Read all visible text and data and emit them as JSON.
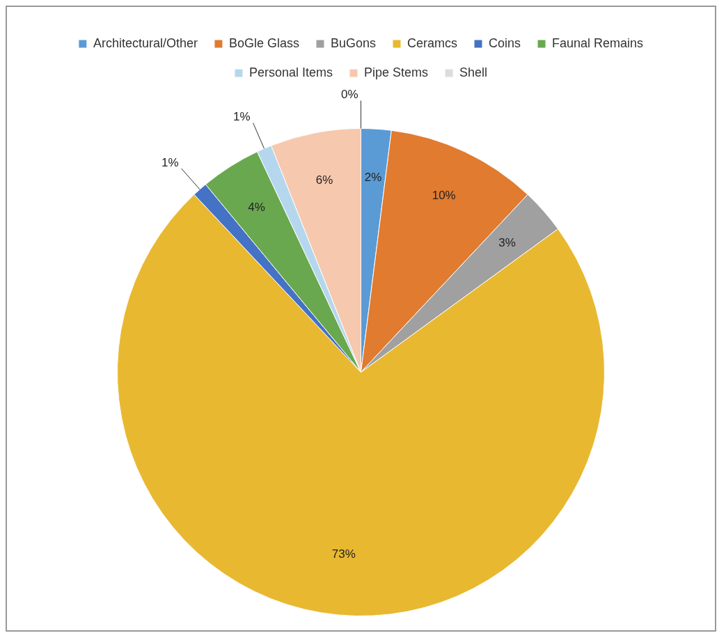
{
  "chart_data": {
    "type": "pie",
    "categories": [
      "Architectural/Other",
      "BoGle Glass",
      "BuGons",
      "Ceramcs",
      "Coins",
      "Faunal Remains",
      "Personal Items",
      "Pipe Stems",
      "Shell"
    ],
    "values": [
      2,
      10,
      3,
      73,
      1,
      4,
      1,
      6,
      0
    ],
    "value_labels": [
      "2%",
      "10%",
      "3%",
      "73%",
      "1%",
      "4%",
      "1%",
      "6%",
      "0%"
    ],
    "colors": [
      "#5b9bd5",
      "#e07b30",
      "#a0a0a0",
      "#e8b830",
      "#4472c4",
      "#6aa84f",
      "#b4d7ee",
      "#f6c8ae",
      "#dcdcdc"
    ],
    "legend": "top"
  }
}
